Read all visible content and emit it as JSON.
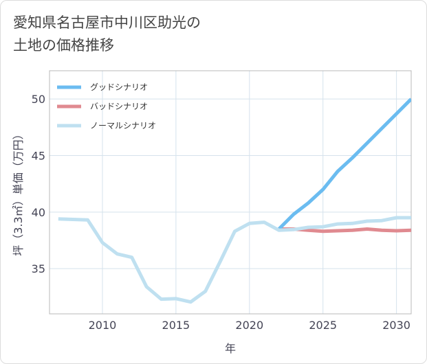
{
  "title_lines": [
    "愛知県名古屋市中川区助光の",
    "土地の価格推移"
  ],
  "chart_data": {
    "type": "line",
    "title": "愛知県名古屋市中川区助光の土地の価格推移",
    "xlabel": "年",
    "ylabel": "坪（3.3㎡）単価（万円）",
    "xlim": [
      2006.4,
      2031
    ],
    "ylim": [
      31.0,
      52.5
    ],
    "xticks": [
      2010,
      2015,
      2020,
      2025,
      2030
    ],
    "yticks": [
      35,
      40,
      45,
      50
    ],
    "grid": true,
    "legend_position": "top-left",
    "series": [
      {
        "name": "グッドシナリオ",
        "color": "#6bbcf0",
        "x": [
          2022,
          2023,
          2024,
          2025,
          2026,
          2027,
          2028,
          2029,
          2030,
          2031
        ],
        "y": [
          38.5,
          39.8,
          40.8,
          42.0,
          43.6,
          44.8,
          46.1,
          47.4,
          48.7,
          50.0
        ]
      },
      {
        "name": "バッドシナリオ",
        "color": "#e08a90",
        "x": [
          2022,
          2023,
          2024,
          2025,
          2026,
          2027,
          2028,
          2029,
          2030,
          2031
        ],
        "y": [
          38.5,
          38.5,
          38.4,
          38.3,
          38.35,
          38.4,
          38.5,
          38.4,
          38.35,
          38.4
        ]
      },
      {
        "name": "ノーマルシナリオ",
        "color": "#bfe0f0",
        "x": [
          2007,
          2008,
          2009,
          2010,
          2011,
          2012,
          2013,
          2014,
          2015,
          2016,
          2017,
          2018,
          2019,
          2020,
          2021,
          2022,
          2023,
          2024,
          2025,
          2026,
          2027,
          2028,
          2029,
          2030,
          2031
        ],
        "y": [
          39.4,
          39.35,
          39.3,
          37.3,
          36.3,
          36.0,
          33.4,
          32.3,
          32.35,
          32.05,
          33.0,
          35.6,
          38.3,
          39.0,
          39.1,
          38.4,
          38.45,
          38.65,
          38.7,
          38.95,
          39.0,
          39.2,
          39.25,
          39.5,
          39.5
        ]
      }
    ]
  }
}
